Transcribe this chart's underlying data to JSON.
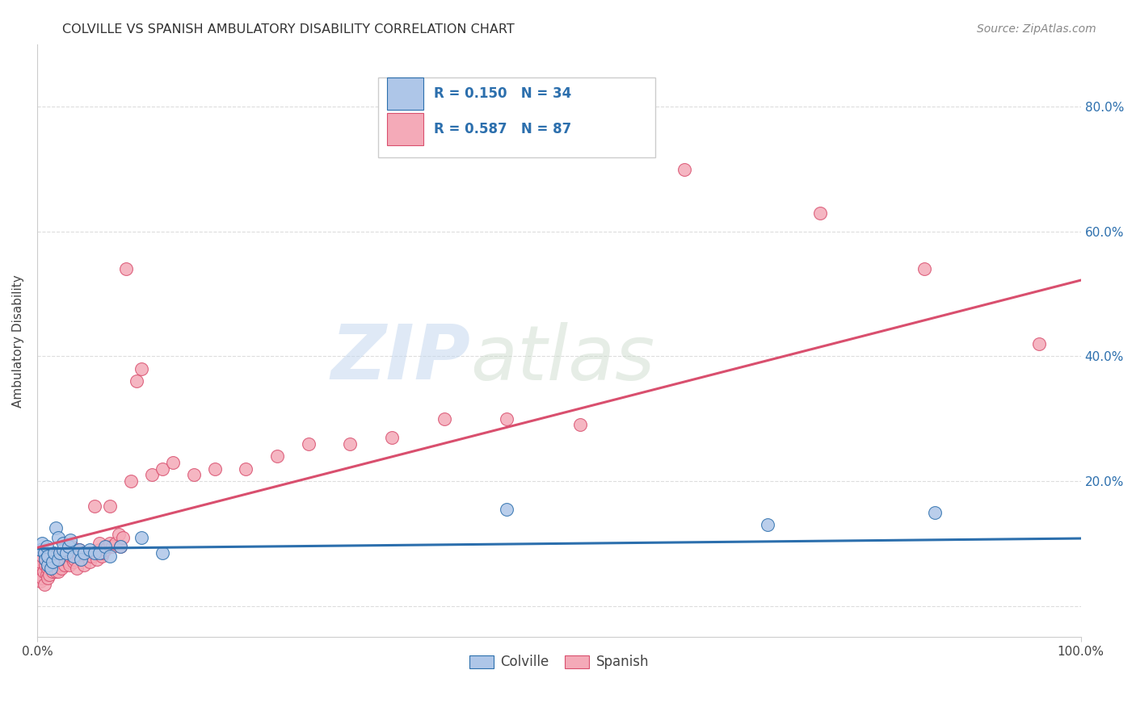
{
  "title": "COLVILLE VS SPANISH AMBULATORY DISABILITY CORRELATION CHART",
  "source": "Source: ZipAtlas.com",
  "ylabel": "Ambulatory Disability",
  "xlim": [
    0.0,
    1.0
  ],
  "ylim": [
    -0.05,
    0.9
  ],
  "x_ticks": [
    0.0,
    1.0
  ],
  "x_tick_labels": [
    "0.0%",
    "100.0%"
  ],
  "y_ticks": [
    0.0,
    0.2,
    0.4,
    0.6,
    0.8
  ],
  "y_tick_labels": [
    "",
    "20.0%",
    "40.0%",
    "60.0%",
    "80.0%"
  ],
  "colville_color": "#aec6e8",
  "spanish_color": "#f4aab8",
  "colville_line_color": "#2c6fad",
  "spanish_line_color": "#d94f6e",
  "colville_R": 0.15,
  "colville_N": 34,
  "spanish_R": 0.587,
  "spanish_N": 87,
  "text_blue": "#2c6fad",
  "text_dark": "#444444",
  "background_color": "#ffffff",
  "grid_color": "#dddddd",
  "watermark_zip": "ZIP",
  "watermark_atlas": "atlas",
  "colville_x": [
    0.003,
    0.005,
    0.007,
    0.008,
    0.009,
    0.01,
    0.01,
    0.013,
    0.015,
    0.016,
    0.018,
    0.02,
    0.02,
    0.022,
    0.025,
    0.025,
    0.028,
    0.03,
    0.032,
    0.035,
    0.04,
    0.042,
    0.045,
    0.05,
    0.055,
    0.06,
    0.065,
    0.07,
    0.08,
    0.1,
    0.12,
    0.45,
    0.7,
    0.86
  ],
  "colville_y": [
    0.09,
    0.1,
    0.085,
    0.075,
    0.095,
    0.065,
    0.08,
    0.06,
    0.07,
    0.085,
    0.125,
    0.11,
    0.075,
    0.085,
    0.09,
    0.1,
    0.085,
    0.095,
    0.105,
    0.08,
    0.09,
    0.075,
    0.085,
    0.09,
    0.085,
    0.085,
    0.095,
    0.08,
    0.095,
    0.11,
    0.085,
    0.155,
    0.13,
    0.15
  ],
  "spanish_x": [
    0.001,
    0.002,
    0.003,
    0.003,
    0.004,
    0.005,
    0.005,
    0.006,
    0.007,
    0.008,
    0.008,
    0.009,
    0.01,
    0.01,
    0.01,
    0.012,
    0.013,
    0.014,
    0.015,
    0.015,
    0.016,
    0.017,
    0.018,
    0.019,
    0.02,
    0.02,
    0.021,
    0.022,
    0.023,
    0.025,
    0.025,
    0.026,
    0.027,
    0.028,
    0.03,
    0.03,
    0.031,
    0.032,
    0.033,
    0.035,
    0.036,
    0.038,
    0.04,
    0.04,
    0.042,
    0.043,
    0.045,
    0.047,
    0.05,
    0.05,
    0.052,
    0.055,
    0.057,
    0.06,
    0.06,
    0.062,
    0.063,
    0.065,
    0.067,
    0.07,
    0.07,
    0.072,
    0.075,
    0.078,
    0.08,
    0.082,
    0.085,
    0.09,
    0.095,
    0.1,
    0.11,
    0.12,
    0.13,
    0.15,
    0.17,
    0.2,
    0.23,
    0.26,
    0.3,
    0.34,
    0.39,
    0.45,
    0.52,
    0.62,
    0.75,
    0.85,
    0.96
  ],
  "spanish_y": [
    0.055,
    0.06,
    0.04,
    0.07,
    0.05,
    0.045,
    0.08,
    0.055,
    0.035,
    0.065,
    0.075,
    0.05,
    0.045,
    0.06,
    0.075,
    0.05,
    0.06,
    0.07,
    0.055,
    0.08,
    0.06,
    0.07,
    0.055,
    0.075,
    0.055,
    0.07,
    0.08,
    0.065,
    0.06,
    0.075,
    0.085,
    0.065,
    0.075,
    0.09,
    0.07,
    0.08,
    0.065,
    0.08,
    0.095,
    0.07,
    0.075,
    0.06,
    0.08,
    0.09,
    0.075,
    0.085,
    0.065,
    0.08,
    0.07,
    0.085,
    0.08,
    0.16,
    0.075,
    0.09,
    0.1,
    0.08,
    0.085,
    0.09,
    0.095,
    0.1,
    0.16,
    0.095,
    0.1,
    0.115,
    0.095,
    0.11,
    0.54,
    0.2,
    0.36,
    0.38,
    0.21,
    0.22,
    0.23,
    0.21,
    0.22,
    0.22,
    0.24,
    0.26,
    0.26,
    0.27,
    0.3,
    0.3,
    0.29,
    0.7,
    0.63,
    0.54,
    0.42
  ]
}
